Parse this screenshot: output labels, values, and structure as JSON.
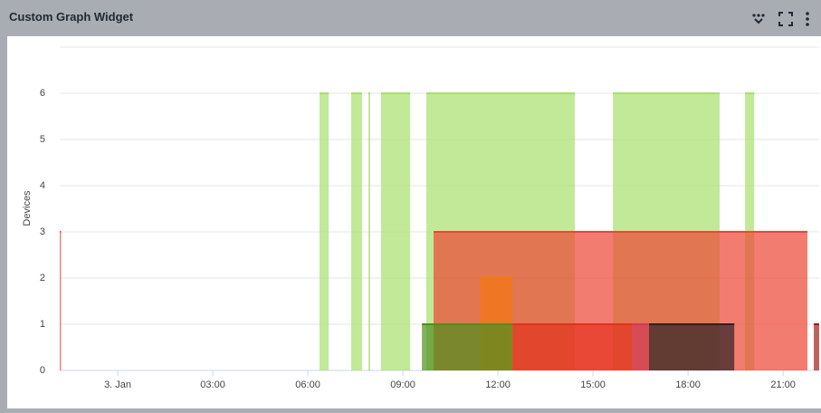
{
  "header": {
    "title": "Custom Graph Widget"
  },
  "chart_data": {
    "type": "step-area",
    "y_label": "Devices",
    "xlim": [
      -1.83,
      22.14
    ],
    "xticks": [
      {
        "value": 0,
        "label": "3. Jan"
      },
      {
        "value": 3,
        "label": "03:00"
      },
      {
        "value": 6,
        "label": "06:00"
      },
      {
        "value": 9,
        "label": "09:00"
      },
      {
        "value": 12,
        "label": "12:00"
      },
      {
        "value": 15,
        "label": "15:00"
      },
      {
        "value": 18,
        "label": "18:00"
      },
      {
        "value": 21,
        "label": "21:00"
      }
    ],
    "ylim": [
      0,
      7
    ],
    "yticks": [
      0,
      1,
      2,
      3,
      4,
      5,
      6
    ],
    "grid": true,
    "series": [
      {
        "color": "#a6df6c",
        "x": [
          6.37,
          6.66,
          7.37,
          7.71,
          7.91,
          7.97,
          8.31,
          9.23,
          9.74,
          14.43,
          15.63,
          19.0,
          19.8,
          20.09
        ],
        "values": [
          6,
          null,
          6,
          null,
          6,
          null,
          6,
          null,
          6,
          null,
          6,
          null,
          6,
          null
        ]
      },
      {
        "color": "#ee4535",
        "x": [
          -1.83,
          -1.79,
          9.97,
          21.77
        ],
        "values": [
          3,
          null,
          3,
          null
        ]
      },
      {
        "color": "#f5780f",
        "x": [
          11.43,
          12.46
        ],
        "values": [
          2,
          null
        ]
      },
      {
        "color": "#4f8f1e",
        "x": [
          9.6,
          12.46
        ],
        "values": [
          1,
          null
        ]
      },
      {
        "color": "#e3321c",
        "x": [
          12.46,
          16.23
        ],
        "values": [
          1,
          null
        ]
      },
      {
        "color": "#d23a55",
        "x": [
          16.23,
          16.77
        ],
        "values": [
          1,
          null
        ]
      },
      {
        "color": "#2c2226",
        "x": [
          16.77,
          19.46
        ],
        "values": [
          1,
          null
        ]
      },
      {
        "color": "#a81e14",
        "x": [
          21.97,
          22.14
        ],
        "values": [
          1,
          null
        ]
      }
    ]
  }
}
